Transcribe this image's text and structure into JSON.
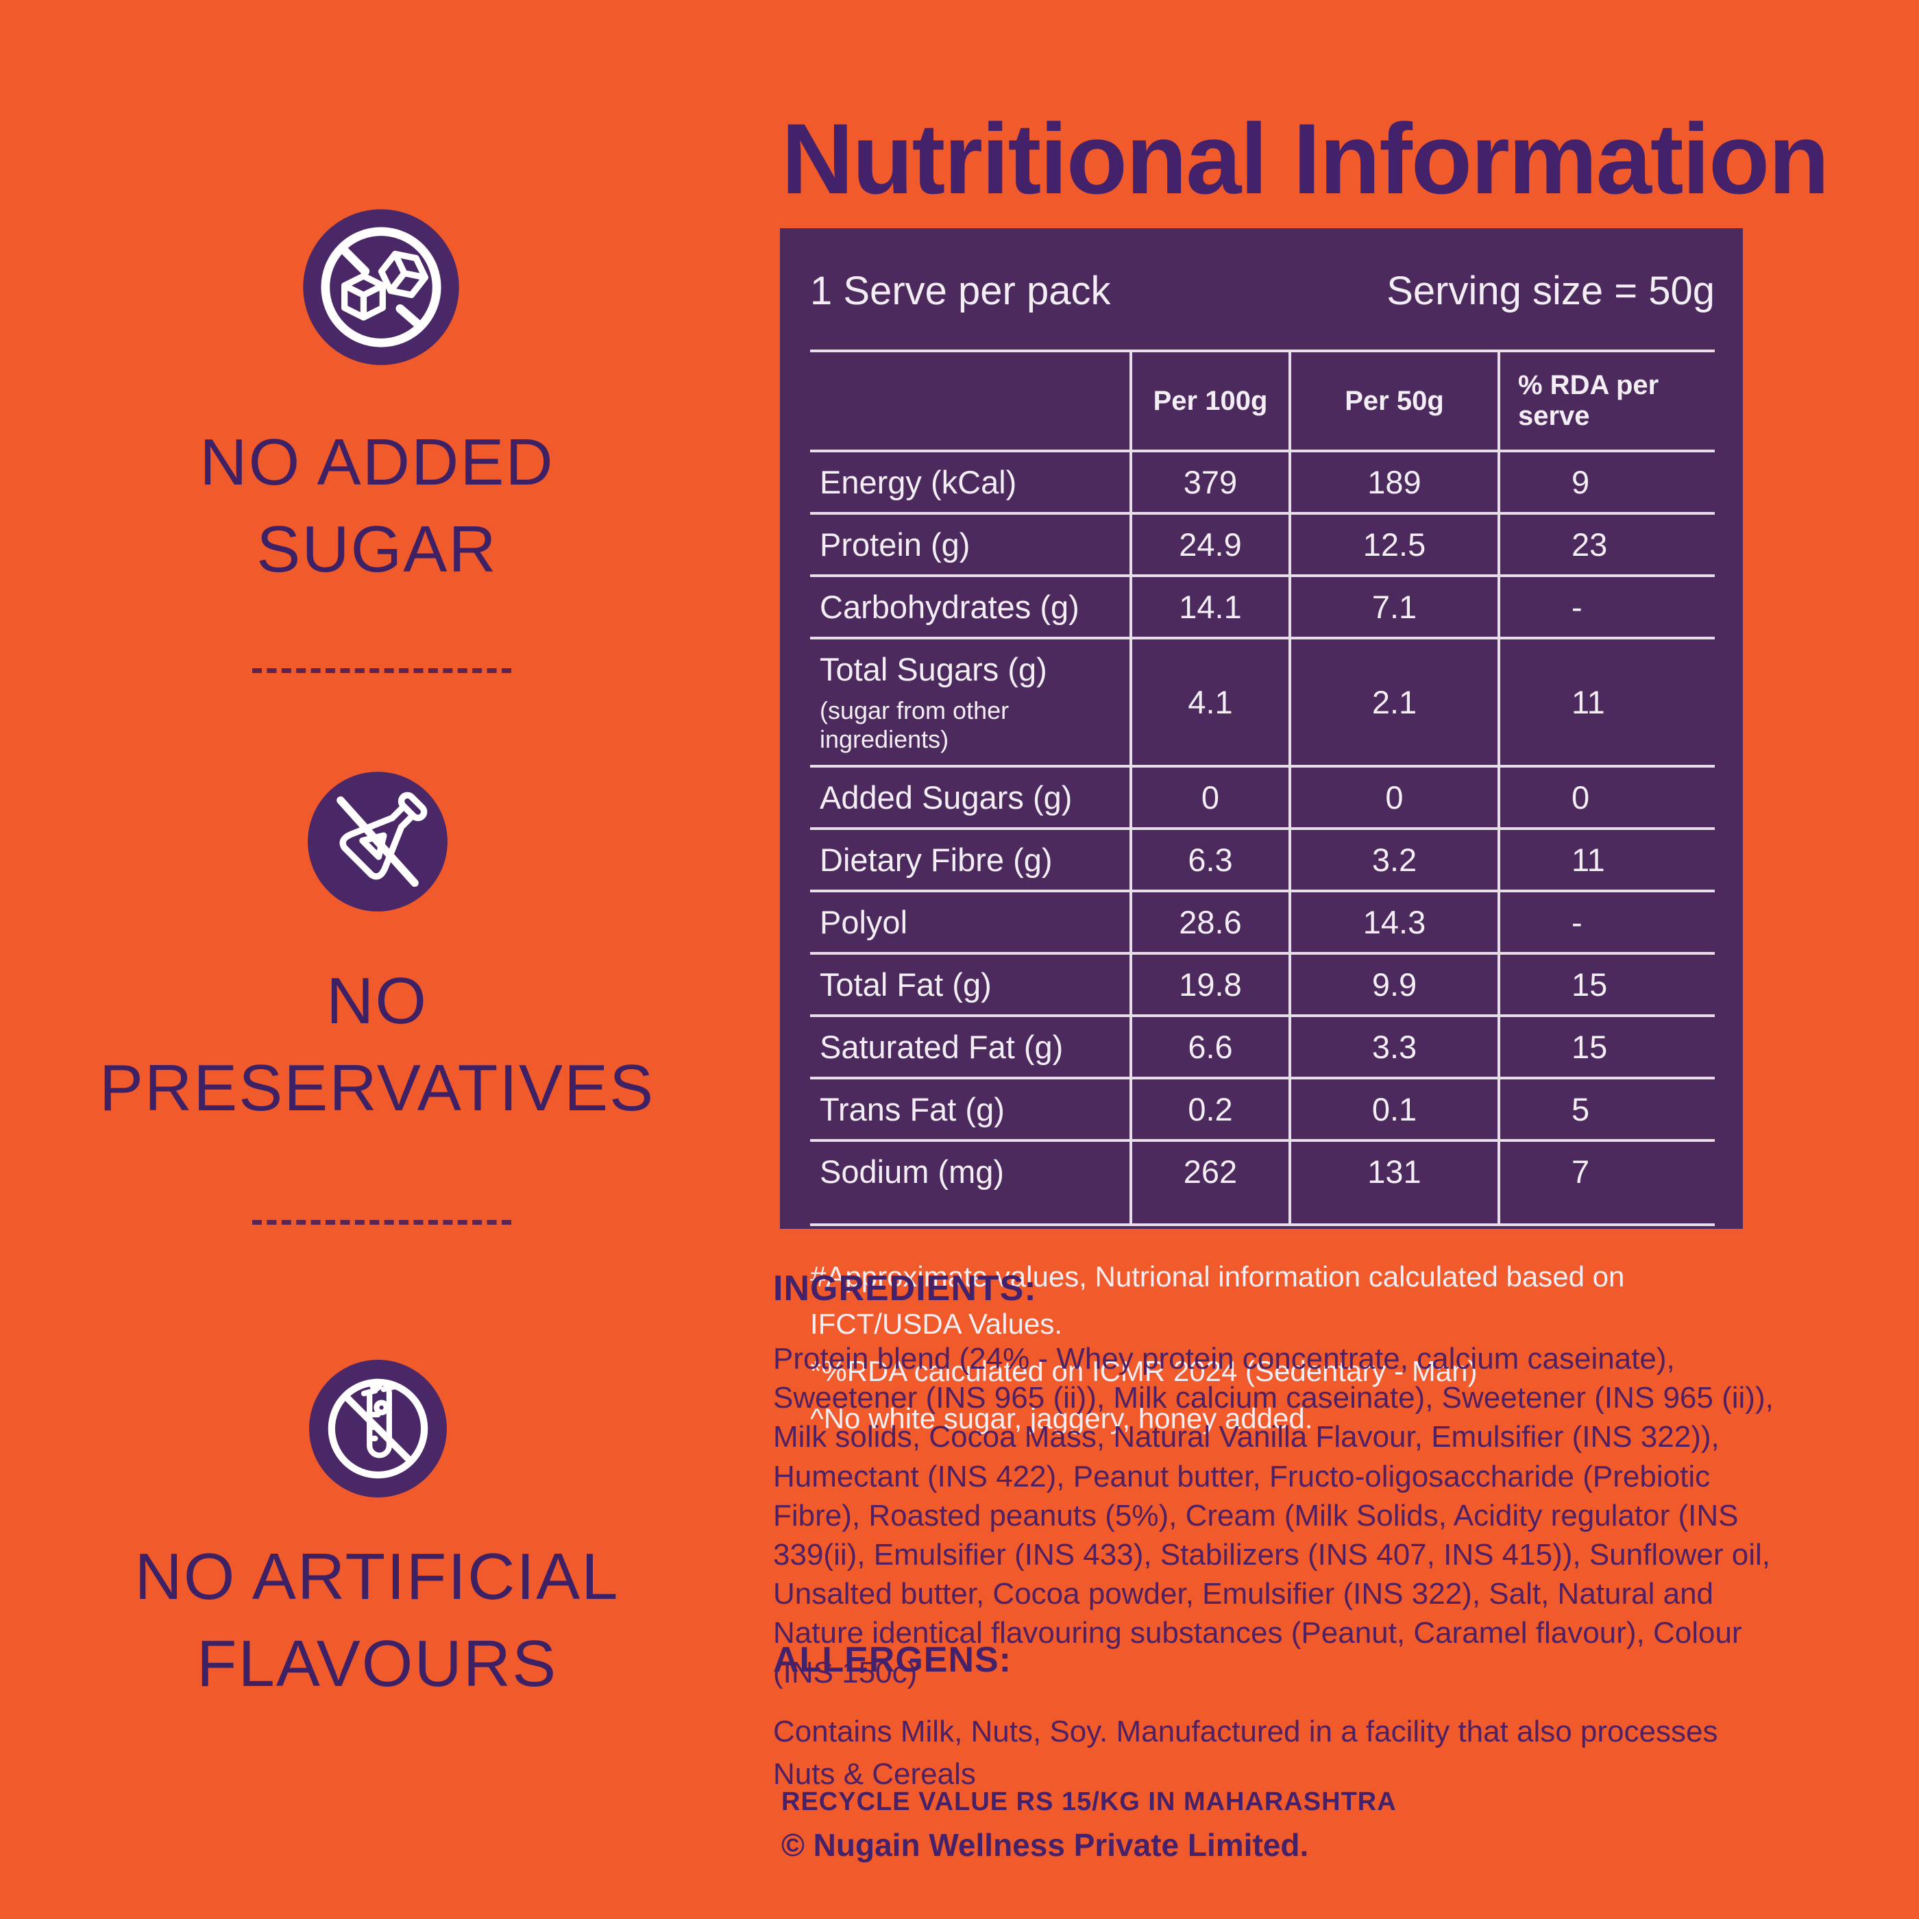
{
  "colors": {
    "background_orange": "#F15B2B",
    "panel_purple": "#4C2A5E",
    "icon_purple": "#4A2766",
    "deep_purple_text": "#44216B",
    "left_label_purple": "#3E2164",
    "table_line_white": "#E7DEE9",
    "table_text_white": "#F3EDF4",
    "dash_purple": "#5E2450"
  },
  "badges": [
    {
      "icon": "no-sugar-cubes-icon",
      "label_lines": [
        "NO ADDED",
        "SUGAR"
      ]
    },
    {
      "icon": "no-flask-icon",
      "label_lines": [
        "NO",
        "PRESERVATIVES"
      ]
    },
    {
      "icon": "no-test-tube-icon",
      "label_lines": [
        "NO ARTIFICIAL",
        "FLAVOURS"
      ]
    }
  ],
  "nutrition": {
    "title": "Nutritional Information",
    "serves_per_pack": "1 Serve per pack",
    "serving_size": "Serving size = 50g",
    "columns": [
      "",
      "Per 100g",
      "Per 50g",
      "% RDA per serve"
    ],
    "rows": [
      {
        "label": "Energy (kCal)",
        "per_100g": "379",
        "per_50g": "189",
        "rda_per_serve": "9"
      },
      {
        "label": "Protein (g)",
        "per_100g": "24.9",
        "per_50g": "12.5",
        "rda_per_serve": "23"
      },
      {
        "label": "Carbohydrates (g)",
        "per_100g": "14.1",
        "per_50g": "7.1",
        "rda_per_serve": "-"
      },
      {
        "label": "Total Sugars (g)",
        "note": "(sugar from other ingredients)",
        "per_100g": "4.1",
        "per_50g": "2.1",
        "rda_per_serve": "11"
      },
      {
        "label": "Added Sugars (g)",
        "per_100g": "0",
        "per_50g": "0",
        "rda_per_serve": "0"
      },
      {
        "label": "Dietary Fibre (g)",
        "per_100g": "6.3",
        "per_50g": "3.2",
        "rda_per_serve": "11"
      },
      {
        "label": "Polyol",
        "per_100g": "28.6",
        "per_50g": "14.3",
        "rda_per_serve": "-"
      },
      {
        "label": "Total Fat (g)",
        "per_100g": "19.8",
        "per_50g": "9.9",
        "rda_per_serve": "15"
      },
      {
        "label": "Saturated Fat (g)",
        "per_100g": "6.6",
        "per_50g": "3.3",
        "rda_per_serve": "15"
      },
      {
        "label": "Trans Fat (g)",
        "per_100g": "0.2",
        "per_50g": "0.1",
        "rda_per_serve": "5"
      },
      {
        "label": "Sodium (mg)",
        "per_100g": "262",
        "per_50g": "131",
        "rda_per_serve": "7"
      }
    ],
    "footnotes": [
      "#Approximate values, Nutrional information calculated based on IFCT/USDA Values.",
      "*%RDA calculated on ICMR 2024 (Sedentary - Man)",
      "^No white sugar, jaggery, honey added."
    ]
  },
  "ingredients": {
    "heading": "INGREDIENTS:",
    "text": "Protein blend (24% - Whey protein concentrate,  calcium caseinate), Sweetener (INS 965 (ii)), Milk calcium caseinate), Sweetener (INS 965 (ii)), Milk solids, Cocoa Mass, Natural Vanilla Flavour, Emulsifier (INS 322)), Humectant (INS 422), Peanut butter, Fructo-oligosaccharide (Prebiotic Fibre), Roasted peanuts (5%), Cream (Milk Solids, Acidity regulator (INS 339(ii), Emulsifier (INS 433), Stabilizers (INS 407, INS 415)), Sunflower oil, Unsalted butter, Cocoa powder, Emulsifier (INS 322), Salt, Natural and Nature identical flavouring substances (Peanut, Caramel flavour),  Colour (INS 150c)"
  },
  "allergens": {
    "heading": "ALLERGENS:",
    "text": "Contains Milk, Nuts, Soy. Manufactured in a facility that also processes Nuts & Cereals"
  },
  "footer": {
    "recycle": "RECYCLE VALUE RS 15/KG IN MAHARASHTRA",
    "copyright": "© Nugain Wellness Private Limited."
  }
}
